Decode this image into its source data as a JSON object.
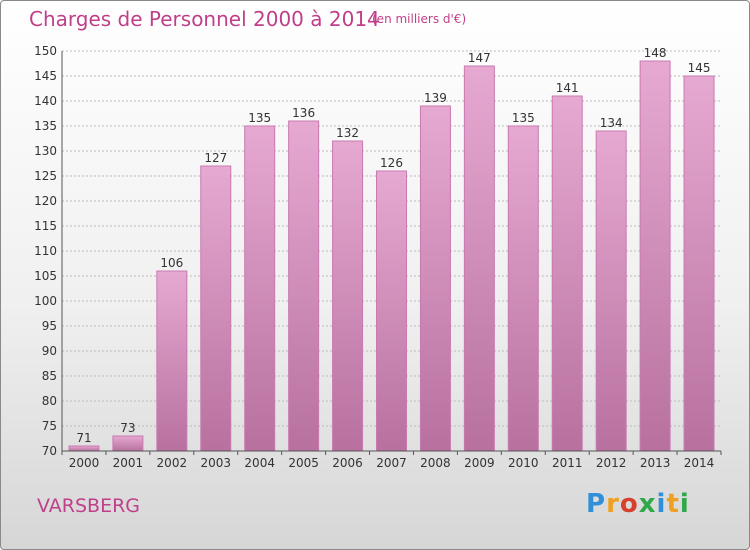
{
  "title": "Charges de Personnel 2000 à 2014",
  "subtitle": "(en milliers d'€)",
  "place": "VARSBERG",
  "logo": {
    "letters": [
      "P",
      "r",
      "o",
      "x",
      "i",
      "t",
      "i"
    ],
    "colors": [
      "#2f8fd8",
      "#f0a020",
      "#d8402e",
      "#2fa84a",
      "#2f8fd8",
      "#f0a020",
      "#2fa84a"
    ]
  },
  "colors": {
    "bar": "#d98fc0",
    "bar_edge": "#c97ab0",
    "grid": "#bbbbbb",
    "text": "#333333",
    "accent": "#c03f8a"
  },
  "chart_data": {
    "type": "bar",
    "title": "Charges de Personnel 2000 à 2014",
    "subtitle": "(en milliers d'€)",
    "xlabel": "",
    "ylabel": "",
    "categories": [
      "2000",
      "2001",
      "2002",
      "2003",
      "2004",
      "2005",
      "2006",
      "2007",
      "2008",
      "2009",
      "2010",
      "2011",
      "2012",
      "2013",
      "2014"
    ],
    "values": [
      71,
      73,
      106,
      127,
      135,
      136,
      132,
      126,
      139,
      147,
      135,
      141,
      134,
      148,
      145
    ],
    "ylim": [
      70,
      150
    ],
    "yticks": [
      70,
      75,
      80,
      85,
      90,
      95,
      100,
      105,
      110,
      115,
      120,
      125,
      130,
      135,
      140,
      145,
      150
    ],
    "grid": true
  }
}
